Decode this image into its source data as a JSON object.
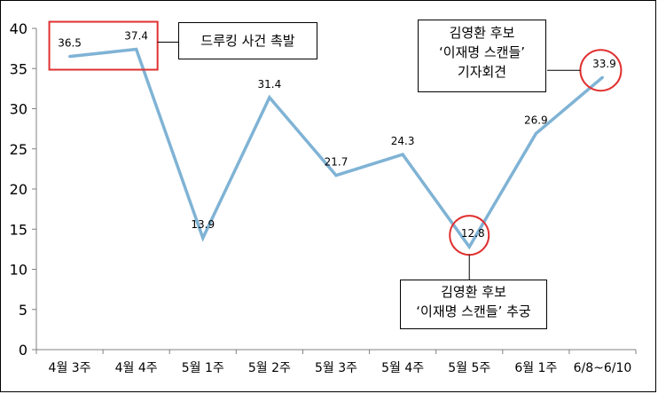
{
  "chart_data": {
    "type": "line",
    "categories": [
      "4월 3주",
      "4월 4주",
      "5월 1주",
      "5월 2주",
      "5월 3주",
      "5월 4주",
      "5월 5주",
      "6월 1주",
      "6/8~6/10"
    ],
    "series": [
      {
        "values": [
          36.5,
          37.4,
          13.9,
          31.4,
          21.7,
          24.3,
          12.8,
          26.9,
          33.9
        ]
      }
    ],
    "data_labels": [
      "36.5",
      "37.4",
      "13.9",
      "31.4",
      "21.7",
      "24.3",
      "12.8",
      "26.9",
      "33.9"
    ],
    "yticks": [
      "0",
      "5",
      "10",
      "15",
      "20",
      "25",
      "30",
      "35",
      "40"
    ],
    "ylim": [
      0,
      40
    ],
    "grid": false,
    "line_color": "#7fb3d5",
    "highlight_rect_color": "#e03030",
    "highlight_circle_color": "#e03030",
    "annotations": [
      {
        "target_points": [
          0,
          1
        ],
        "lines": [
          "드루킹 사건 촉발"
        ]
      },
      {
        "target_point": 8,
        "lines": [
          "김영환 후보",
          "‘이재명 스캔들’",
          "기자회견"
        ]
      },
      {
        "target_point": 6,
        "lines": [
          "김영환 후보",
          "‘이재명 스캔들’ 추궁"
        ]
      }
    ]
  }
}
